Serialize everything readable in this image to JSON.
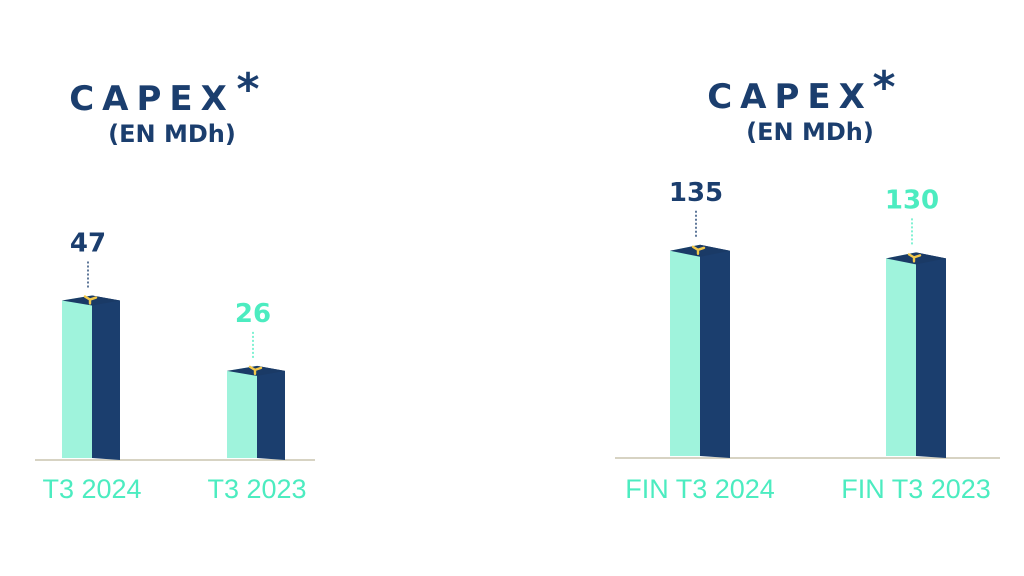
{
  "colors": {
    "navy": "#1b3e6e",
    "mint": "#9ff3dc",
    "mint_text": "#4cecc0",
    "top": "#1a3a66",
    "logo": "#f2c84b",
    "baseline": "#d7d3c3"
  },
  "chart_data": [
    {
      "type": "bar",
      "title": "CAPEX",
      "title_mark": "*",
      "subtitle": "(EN MDh)",
      "categories": [
        "T3 2024",
        "T3 2023"
      ],
      "values": [
        47,
        26
      ],
      "value_labels": [
        "47",
        "26"
      ],
      "ylim": [
        0,
        100
      ],
      "grid": false,
      "style": "3d-column"
    },
    {
      "type": "bar",
      "title": "CAPEX",
      "title_mark": "*",
      "subtitle": "(EN MDh)",
      "categories": [
        "FIN T3 2024",
        "FIN T3 2023"
      ],
      "values": [
        135,
        130
      ],
      "value_labels": [
        "135",
        "130"
      ],
      "ylim": [
        0,
        200
      ],
      "grid": false,
      "style": "3d-column"
    }
  ]
}
